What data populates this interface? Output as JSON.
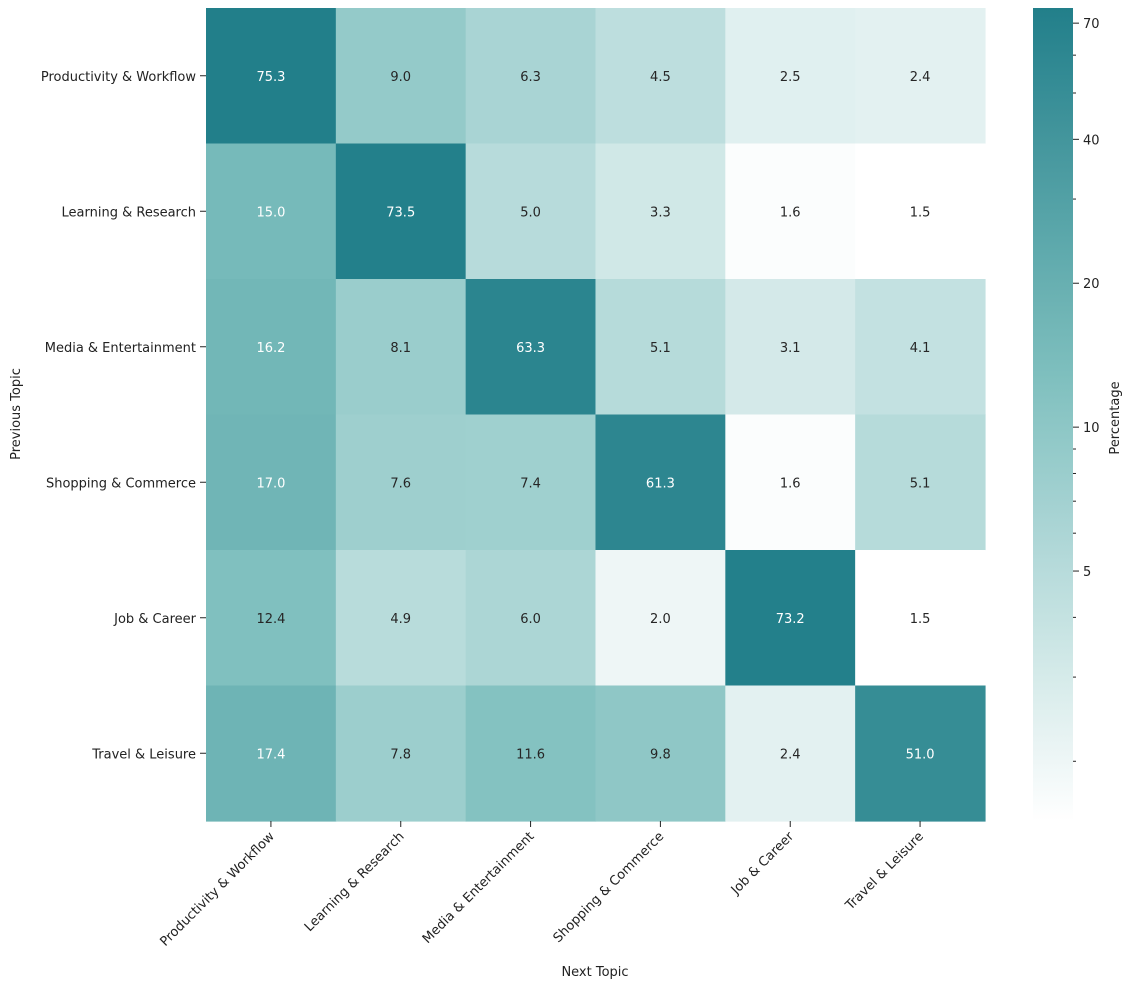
{
  "chart_data": {
    "type": "heatmap",
    "title": "",
    "xlabel": "Next Topic",
    "ylabel": "Previous Topic",
    "x_categories": [
      "Productivity & Workflow",
      "Learning & Research",
      "Media & Entertainment",
      "Shopping & Commerce",
      "Job & Career",
      "Travel & Leisure"
    ],
    "y_categories": [
      "Productivity & Workflow",
      "Learning & Research",
      "Media & Entertainment",
      "Shopping & Commerce",
      "Job & Career",
      "Travel & Leisure"
    ],
    "values": [
      [
        75.3,
        9.0,
        6.3,
        4.5,
        2.5,
        2.4
      ],
      [
        15.0,
        73.5,
        5.0,
        3.3,
        1.6,
        1.5
      ],
      [
        16.2,
        8.1,
        63.3,
        5.1,
        3.1,
        4.1
      ],
      [
        17.0,
        7.6,
        7.4,
        61.3,
        1.6,
        5.1
      ],
      [
        12.4,
        4.9,
        6.0,
        2.0,
        73.2,
        1.5
      ],
      [
        17.4,
        7.8,
        11.6,
        9.8,
        2.4,
        51.0
      ]
    ],
    "value_format": "0.1f",
    "colorbar": {
      "label": "Percentage",
      "scale": "log",
      "vmin": 1.5,
      "vmax": 75.3,
      "ticks": [
        5,
        10,
        20,
        40,
        70
      ]
    },
    "colors": {
      "low": "#ffffff",
      "mid": "#7ebfbe",
      "high": "#227f8a",
      "text_dark": "#262626",
      "text_light": "#ffffff"
    }
  }
}
